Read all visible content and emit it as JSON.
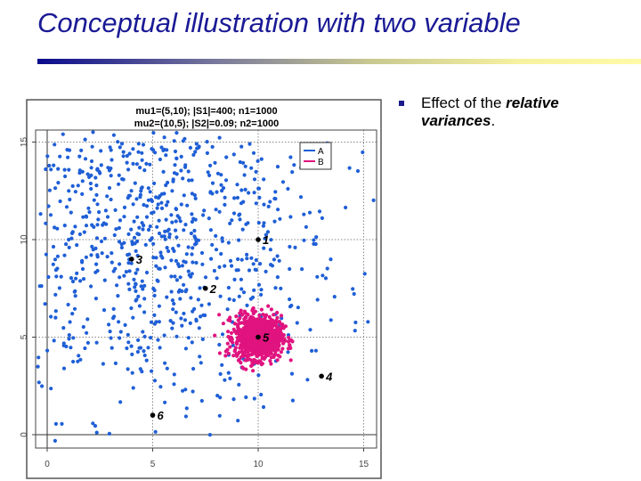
{
  "slide": {
    "title": "Conceptual illustration with two variable",
    "bullet": {
      "prefix": "Effect of the ",
      "emphasis": "relative variances",
      "suffix": "."
    },
    "accent_colors": {
      "title": "#1a1a96",
      "rule_start": "#0a0a8c",
      "rule_end": "#fffaa8"
    }
  },
  "chart_data": {
    "type": "scatter",
    "title_lines": [
      "mu1=(5,10); |S1|=400; n1=1000",
      "mu2=(10,5); |S2|=0.09; n2=1000"
    ],
    "xlabel": "",
    "ylabel": "",
    "xlim": [
      -0.55,
      15.6
    ],
    "ylim": [
      -0.7,
      15.6
    ],
    "xticks": [
      0,
      5,
      10,
      15
    ],
    "yticks": [
      0,
      5,
      10,
      15
    ],
    "grid": "dotted at 5,10,15",
    "legend": {
      "position": "top-right",
      "entries": [
        {
          "label": "A",
          "color": "#1f5fd6"
        },
        {
          "label": "B",
          "color": "#e0137f"
        }
      ]
    },
    "series": [
      {
        "name": "A",
        "color": "#1f5fd6",
        "mean": [
          5,
          10
        ],
        "det_cov": 400,
        "n": 1000
      },
      {
        "name": "B",
        "color": "#e0137f",
        "mean": [
          10,
          5
        ],
        "det_cov": 0.09,
        "n": 1000
      }
    ],
    "labeled_points": [
      {
        "label": "1",
        "x": 10,
        "y": 10
      },
      {
        "label": "2",
        "x": 7.5,
        "y": 7.5
      },
      {
        "label": "3",
        "x": 4,
        "y": 9
      },
      {
        "label": "4",
        "x": 13,
        "y": 3
      },
      {
        "label": "5",
        "x": 10,
        "y": 5
      },
      {
        "label": "6",
        "x": 5,
        "y": 1
      }
    ]
  }
}
